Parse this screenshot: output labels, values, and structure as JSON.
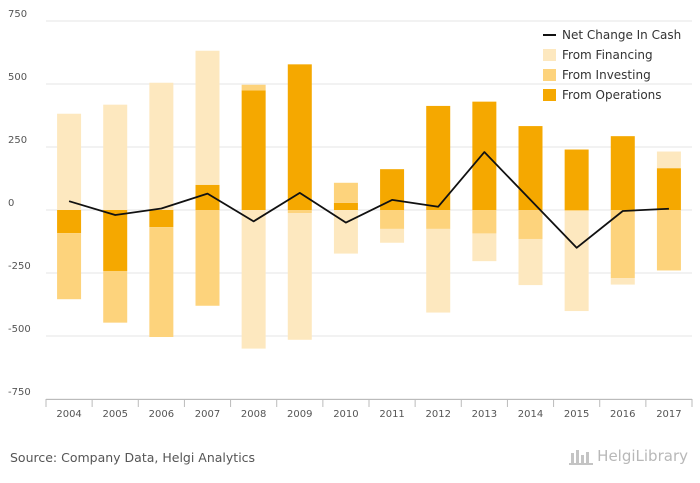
{
  "chart_data": {
    "type": "bar",
    "title": "",
    "xlabel": "",
    "ylabel": "",
    "ylim": [
      -750,
      750
    ],
    "yticks": [
      -750,
      -500,
      -250,
      0,
      250,
      500,
      750
    ],
    "grid": true,
    "legend_position": "top-right",
    "categories": [
      "2004",
      "2005",
      "2006",
      "2007",
      "2008",
      "2009",
      "2010",
      "2011",
      "2012",
      "2013",
      "2014",
      "2015",
      "2016",
      "2017"
    ],
    "series": [
      {
        "name": "From Operations",
        "kind": "bar",
        "color": "#f5a800",
        "values": [
          -92,
          -242,
          -68,
          100,
          475,
          578,
          28,
          162,
          413,
          430,
          333,
          240,
          293,
          166
        ]
      },
      {
        "name": "From Investing",
        "kind": "bar",
        "color": "#fdd37c",
        "values": [
          -262,
          -205,
          -436,
          -380,
          22,
          -12,
          80,
          -75,
          -75,
          -93,
          -115,
          -5,
          -270,
          -240
        ]
      },
      {
        "name": "From Financing",
        "kind": "bar",
        "color": "#fde8bf",
        "values": [
          382,
          418,
          505,
          532,
          -550,
          -503,
          -173,
          -55,
          -332,
          -110,
          -183,
          -396,
          -26,
          66
        ]
      },
      {
        "name": "Net Change In Cash",
        "kind": "line",
        "color": "#111111",
        "values": [
          35,
          -20,
          6,
          65,
          -45,
          68,
          -50,
          40,
          13,
          230,
          40,
          -150,
          -4,
          5
        ]
      }
    ],
    "legend": [
      "Net Change In Cash",
      "From Financing",
      "From Investing",
      "From Operations"
    ]
  },
  "footer": {
    "source": "Source: Company Data, Helgi Analytics",
    "brand": "HelgiLibrary"
  }
}
